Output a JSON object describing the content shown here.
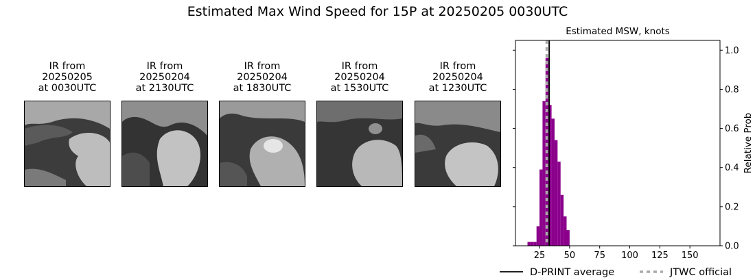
{
  "suptitle": "Estimated Max Wind Speed for 15P at 20250205 0030UTC",
  "ir_panels": [
    {
      "line1": "IR from",
      "line2": "20250205",
      "line3": "at 0030UTC"
    },
    {
      "line1": "IR from",
      "line2": "20250204",
      "line3": "at 2130UTC"
    },
    {
      "line1": "IR from",
      "line2": "20250204",
      "line3": "at 1830UTC"
    },
    {
      "line1": "IR from",
      "line2": "20250204",
      "line3": "at 1530UTC"
    },
    {
      "line1": "IR from",
      "line2": "20250204",
      "line3": "at 1230UTC"
    }
  ],
  "chart_data": {
    "type": "bar",
    "title": "Estimated MSW, knots",
    "xlabel": "",
    "ylabel": "Relative Prob",
    "xlim": [
      5,
      175
    ],
    "ylim": [
      0,
      1.05
    ],
    "xticks": [
      25,
      50,
      75,
      100,
      125,
      150
    ],
    "yticks": [
      0.0,
      0.2,
      0.4,
      0.6,
      0.8,
      1.0
    ],
    "bin_width": 2.5,
    "bar_color": "#8b008b",
    "bars": [
      {
        "x": 16.25,
        "value": 0.02
      },
      {
        "x": 18.75,
        "value": 0.02
      },
      {
        "x": 21.25,
        "value": 0.02
      },
      {
        "x": 23.75,
        "value": 0.1
      },
      {
        "x": 26.25,
        "value": 0.39
      },
      {
        "x": 28.75,
        "value": 0.74
      },
      {
        "x": 31.25,
        "value": 0.96
      },
      {
        "x": 33.75,
        "value": 0.72
      },
      {
        "x": 36.25,
        "value": 0.65
      },
      {
        "x": 38.75,
        "value": 0.54
      },
      {
        "x": 41.25,
        "value": 0.43
      },
      {
        "x": 43.75,
        "value": 0.26
      },
      {
        "x": 46.25,
        "value": 0.15
      },
      {
        "x": 48.75,
        "value": 0.08
      }
    ],
    "lines": [
      {
        "name": "D-PRINT average",
        "x": 33,
        "color": "#000000",
        "style": "solid"
      },
      {
        "name": "JTWC official",
        "x": 31,
        "color": "#aaaaaa",
        "style": "dotted"
      }
    ],
    "legend_position": "bottom"
  }
}
